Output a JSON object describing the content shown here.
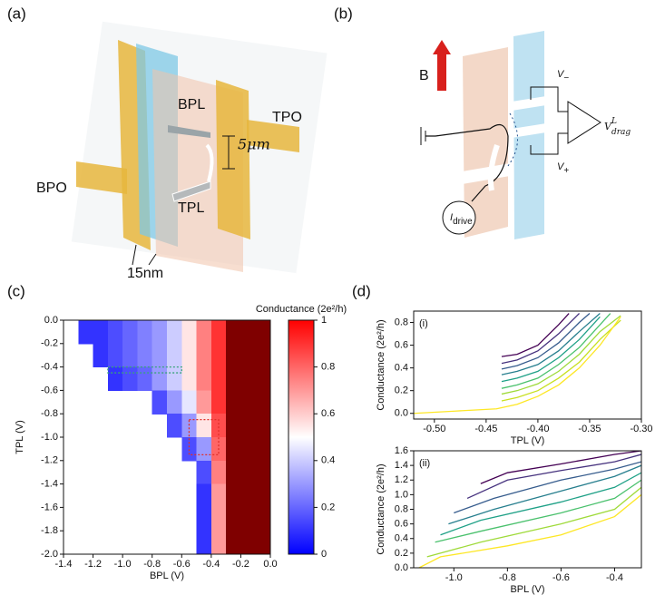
{
  "panel_labels": [
    "(a)",
    "(b)",
    "(c)",
    "(d)"
  ],
  "panel_a": {
    "bpl": "BPL",
    "tpl": "TPL",
    "tpo": "TPO",
    "bpo": "BPO",
    "gap": "5μm",
    "thickness": "15nm"
  },
  "panel_b": {
    "field": "B",
    "i_drive": {
      "base": "I",
      "sub": "drive"
    },
    "v_minus": {
      "base": "V",
      "sub": "−"
    },
    "v_plus": {
      "base": "V",
      "sub": "+"
    },
    "v_drag": {
      "base": "V",
      "sup": "L",
      "sub": "drag"
    }
  },
  "chart_data": [
    {
      "type": "heatmap",
      "xlabel": "BPL (V)",
      "ylabel": "TPL (V)",
      "xlim": [
        -1.4,
        0
      ],
      "ylim": [
        -2,
        0
      ],
      "xticks": [
        -1.4,
        -1.2,
        {
          "value": -1,
          "label": "-1.0"
        },
        -0.8,
        -0.6,
        -0.4,
        -0.2,
        {
          "value": 0,
          "label": "0.0"
        }
      ],
      "yticks": [
        {
          "value": 0,
          "label": "0.0"
        },
        -0.2,
        -0.4,
        -0.6,
        -0.8,
        {
          "value": -1,
          "label": "-1.0"
        },
        -1.2,
        -1.4,
        -1.6,
        -1.8,
        {
          "value": -2,
          "label": "-2.0"
        }
      ],
      "xbins": [
        -1.4,
        -1.3,
        -1.2,
        -1.1,
        -1.0,
        -0.9,
        -0.8,
        -0.7,
        -0.6,
        -0.5,
        -0.4,
        -0.3,
        -0.2,
        -0.1,
        0
      ],
      "ybins": [
        0,
        -0.2,
        -0.4,
        -0.6,
        -0.8,
        -1.0,
        -1.2,
        -1.4,
        -1.6,
        -1.8,
        -2.0
      ],
      "z": [
        [
          null,
          0.1,
          0.1,
          0.15,
          0.2,
          0.25,
          0.3,
          0.4,
          0.55,
          0.75,
          0.9,
          1.2,
          1.2,
          1.2
        ],
        [
          null,
          null,
          0.1,
          0.15,
          0.2,
          0.25,
          0.3,
          0.4,
          0.55,
          0.75,
          0.9,
          1.2,
          1.2,
          1.2
        ],
        [
          null,
          null,
          null,
          0.1,
          0.15,
          0.2,
          0.3,
          0.4,
          0.55,
          0.75,
          0.9,
          1.2,
          1.2,
          1.2
        ],
        [
          null,
          null,
          null,
          null,
          null,
          null,
          0.15,
          0.3,
          0.45,
          0.7,
          0.9,
          1.2,
          1.2,
          1.2
        ],
        [
          null,
          null,
          null,
          null,
          null,
          null,
          null,
          0.15,
          0.3,
          0.55,
          0.85,
          1.2,
          1.2,
          1.2
        ],
        [
          null,
          null,
          null,
          null,
          null,
          null,
          null,
          null,
          0.15,
          0.3,
          0.8,
          1.2,
          1.2,
          1.2
        ],
        [
          null,
          null,
          null,
          null,
          null,
          null,
          null,
          null,
          null,
          0.15,
          0.75,
          1.2,
          1.2,
          1.2
        ],
        [
          null,
          null,
          null,
          null,
          null,
          null,
          null,
          null,
          null,
          0.1,
          0.7,
          1.2,
          1.2,
          1.2
        ],
        [
          null,
          null,
          null,
          null,
          null,
          null,
          null,
          null,
          null,
          0.1,
          0.7,
          1.2,
          1.2,
          1.2
        ],
        [
          null,
          null,
          null,
          null,
          null,
          null,
          null,
          null,
          null,
          0.1,
          0.7,
          1.2,
          1.2,
          1.2
        ]
      ],
      "colorbar_title": "Conductance (2e²/h)",
      "zlim": [
        0,
        1
      ],
      "zticks": [
        0,
        0.2,
        0.4,
        0.6,
        0.8,
        1
      ],
      "colormap": [
        "#0000ff",
        "#ffffff",
        "#ff0000"
      ],
      "over_color": "#7f0000",
      "highlights": [
        {
          "color": "#3aa37a",
          "xlim": [
            -1.1,
            -0.6
          ],
          "ylim": [
            -0.45,
            -0.4
          ]
        },
        {
          "color": "#e0302a",
          "xlim": [
            -0.55,
            -0.35
          ],
          "ylim": [
            -1.15,
            -0.85
          ]
        }
      ]
    },
    {
      "type": "line",
      "annotation": "(i)",
      "xlabel": "TPL (V)",
      "ylabel": "Conductance (2e²/h)",
      "xlim": [
        -0.52,
        -0.3
      ],
      "ylim": [
        -0.05,
        0.9
      ],
      "xticks": [
        {
          "value": -0.5,
          "label": "-0.50"
        },
        -0.45,
        {
          "value": -0.4,
          "label": "-0.40"
        },
        -0.35,
        {
          "value": -0.3,
          "label": "-0.30"
        }
      ],
      "yticks": [
        {
          "value": 0,
          "label": "0.0"
        },
        0.2,
        0.4,
        0.6,
        0.8
      ],
      "series": [
        {
          "color": "#440154",
          "x": [
            -0.435,
            -0.42,
            -0.4,
            -0.38,
            -0.37
          ],
          "values": [
            0.5,
            0.52,
            0.6,
            0.78,
            0.88
          ]
        },
        {
          "color": "#46327e",
          "x": [
            -0.435,
            -0.42,
            -0.4,
            -0.38,
            -0.36
          ],
          "values": [
            0.44,
            0.47,
            0.55,
            0.7,
            0.88
          ]
        },
        {
          "color": "#365c8d",
          "x": [
            -0.435,
            -0.42,
            -0.4,
            -0.38,
            -0.36,
            -0.35
          ],
          "values": [
            0.39,
            0.42,
            0.49,
            0.62,
            0.8,
            0.88
          ]
        },
        {
          "color": "#277f8e",
          "x": [
            -0.435,
            -0.42,
            -0.4,
            -0.38,
            -0.36,
            -0.34
          ],
          "values": [
            0.34,
            0.37,
            0.43,
            0.55,
            0.72,
            0.88
          ]
        },
        {
          "color": "#1fa187",
          "x": [
            -0.435,
            -0.42,
            -0.4,
            -0.38,
            -0.36,
            -0.34
          ],
          "values": [
            0.28,
            0.31,
            0.37,
            0.49,
            0.65,
            0.85
          ]
        },
        {
          "color": "#4ac16d",
          "x": [
            -0.435,
            -0.42,
            -0.4,
            -0.38,
            -0.36,
            -0.34,
            -0.33
          ],
          "values": [
            0.22,
            0.25,
            0.31,
            0.43,
            0.58,
            0.78,
            0.88
          ]
        },
        {
          "color": "#9fda3a",
          "x": [
            -0.435,
            -0.42,
            -0.4,
            -0.38,
            -0.36,
            -0.34,
            -0.32
          ],
          "values": [
            0.17,
            0.2,
            0.26,
            0.37,
            0.52,
            0.72,
            0.86
          ]
        },
        {
          "color": "#c8e020",
          "x": [
            -0.435,
            -0.42,
            -0.4,
            -0.38,
            -0.36,
            -0.34,
            -0.32
          ],
          "values": [
            0.11,
            0.14,
            0.2,
            0.31,
            0.45,
            0.65,
            0.82
          ]
        },
        {
          "color": "#fde725",
          "x": [
            -0.52,
            -0.48,
            -0.46,
            -0.44,
            -0.42,
            -0.4,
            -0.38,
            -0.36,
            -0.34,
            -0.32
          ],
          "values": [
            0.0,
            0.02,
            0.03,
            0.04,
            0.08,
            0.15,
            0.25,
            0.4,
            0.6,
            0.85
          ]
        }
      ]
    },
    {
      "type": "line",
      "annotation": "(ii)",
      "xlabel": "BPL (V)",
      "ylabel": "Conductance (2e²/h)",
      "xlim": [
        -1.15,
        -0.3
      ],
      "ylim": [
        0,
        1.6
      ],
      "xticks": [
        {
          "value": -1,
          "label": "-1.0"
        },
        -0.8,
        -0.6,
        -0.4
      ],
      "yticks": [
        {
          "value": 0,
          "label": "0.0"
        },
        0.2,
        0.4,
        0.6,
        0.8,
        {
          "value": 1,
          "label": "1.0"
        },
        1.2,
        1.4,
        1.6
      ],
      "series": [
        {
          "color": "#440154",
          "x": [
            -0.9,
            -0.8,
            -0.6,
            -0.4,
            -0.3
          ],
          "values": [
            1.15,
            1.3,
            1.42,
            1.55,
            1.6
          ]
        },
        {
          "color": "#46327e",
          "x": [
            -0.95,
            -0.8,
            -0.6,
            -0.4,
            -0.3
          ],
          "values": [
            0.95,
            1.2,
            1.33,
            1.45,
            1.55
          ]
        },
        {
          "color": "#365c8d",
          "x": [
            -1.0,
            -0.85,
            -0.6,
            -0.4,
            -0.3
          ],
          "values": [
            0.75,
            0.95,
            1.2,
            1.35,
            1.45
          ]
        },
        {
          "color": "#277f8e",
          "x": [
            -1.02,
            -0.85,
            -0.6,
            -0.4,
            -0.3
          ],
          "values": [
            0.6,
            0.8,
            1.05,
            1.25,
            1.4
          ]
        },
        {
          "color": "#1fa187",
          "x": [
            -1.05,
            -0.9,
            -0.6,
            -0.4,
            -0.3
          ],
          "values": [
            0.45,
            0.65,
            0.9,
            1.1,
            1.3
          ]
        },
        {
          "color": "#4ac16d",
          "x": [
            -1.07,
            -0.9,
            -0.6,
            -0.4,
            -0.3
          ],
          "values": [
            0.35,
            0.5,
            0.75,
            0.95,
            1.2
          ]
        },
        {
          "color": "#9fda3a",
          "x": [
            -1.1,
            -0.9,
            -0.6,
            -0.4,
            -0.3
          ],
          "values": [
            0.15,
            0.35,
            0.6,
            0.8,
            1.1
          ]
        },
        {
          "color": "#fde725",
          "x": [
            -1.13,
            -1.05,
            -0.8,
            -0.6,
            -0.4,
            -0.3
          ],
          "values": [
            0,
            0.15,
            0.3,
            0.45,
            0.7,
            1.0
          ]
        }
      ]
    }
  ]
}
